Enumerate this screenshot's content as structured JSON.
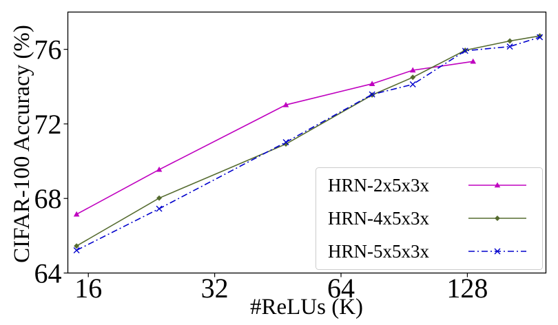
{
  "chart_data": {
    "type": "line",
    "xlabel": "#ReLUs (K)",
    "ylabel": "CIFAR-100 Accuracy (%)",
    "x_scale": "log2",
    "xlim": [
      14.3,
      197
    ],
    "ylim": [
      64,
      78
    ],
    "x_ticks": [
      16,
      32,
      64,
      128
    ],
    "x_tick_labels": [
      "16",
      "32",
      "64",
      "128"
    ],
    "y_ticks": [
      64,
      68,
      72,
      76
    ],
    "y_tick_labels": [
      "64",
      "68",
      "72",
      "76"
    ],
    "grid": false,
    "legend_position": "lower-right",
    "series": [
      {
        "name": "HRN-2x5x3x",
        "color": "#bf00bf",
        "marker": "triangle",
        "linestyle": "solid",
        "x": [
          15,
          23.6,
          47.3,
          75.9,
          94.9,
          132.1
        ],
        "y": [
          67.15,
          69.55,
          73.02,
          74.15,
          74.88,
          75.35
        ]
      },
      {
        "name": "HRN-4x5x3x",
        "color": "#556b2f",
        "marker": "diamond",
        "linestyle": "solid",
        "x": [
          15,
          23.6,
          47.3,
          75.9,
          94.9,
          126.5,
          161.6,
          190.5
        ],
        "y": [
          65.45,
          68.02,
          70.92,
          73.55,
          74.5,
          75.95,
          76.45,
          76.72
        ]
      },
      {
        "name": "HRN-5x5x3x",
        "color": "#0000cc",
        "marker": "x",
        "linestyle": "dashdot",
        "x": [
          15,
          23.6,
          47.3,
          75.9,
          94.9,
          126.5,
          161.6,
          190.5
        ],
        "y": [
          65.22,
          67.45,
          71.02,
          73.58,
          74.12,
          75.92,
          76.15,
          76.65
        ]
      }
    ]
  }
}
